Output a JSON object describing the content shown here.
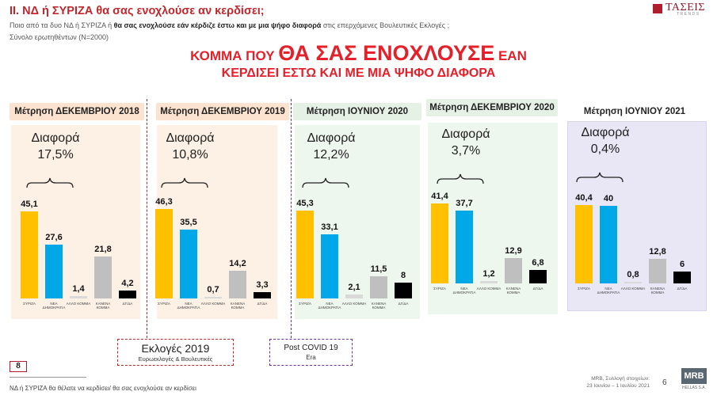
{
  "header": {
    "title": "ΙΙ. ΝΔ  ή ΣΥΡΙΖΑ θα σας ενοχλούσε αν κερδίσει;",
    "subtitle_plain1": "Ποιο από τα δυο ΝΔ ή ΣΥΡΙΖΑ ή ",
    "subtitle_bold": "θα σας ενοχλούσε εάν κέρδιζε έστω και με μια ψήφο διαφορά",
    "subtitle_plain2": " στις επερχόμενες Βουλευτικές Εκλογές ;",
    "sample": "Σύνολο ερωτηθέντων (N=2000)",
    "logo_name": "ΤΑΣΕΙΣ",
    "logo_sub": "TRENDS"
  },
  "headline": {
    "line1_small": "ΚΟΜΜΑ ΠΟΥ ",
    "line1_big": "ΘΑ ΣΑΣ ΕΝΟΧΛΟΥΣΕ",
    "line1_small2": " ΕΑΝ",
    "line2": "ΚΕΡΔΙΣΕΙ ΕΣΤΩ ΚΑΙ ΜΕ ΜΙΑ ΨΗΦΟ ΔΙΑΦΟΡΑ"
  },
  "diff_label": "Διαφορά",
  "chart_data": [
    {
      "type": "bar",
      "title": "Μέτρηση ΔΕΚΕΜΒΡΙΟΥ 2018",
      "difference": "17,5%",
      "categories": [
        "ΣΥΡΙΖΑ",
        "ΝΕΑ ΔΗΜΟΚΡΑΤΙΑ",
        "ΑΛΛΟ ΚΟΜΜΑ",
        "ΚΑΝΕΝΑ ΚΟΜΜΑ",
        "ΔΓ/ΔΑ"
      ],
      "values": [
        45.1,
        27.6,
        1.4,
        21.8,
        4.2
      ],
      "labels": [
        "45,1",
        "27,6",
        "1,4",
        "21,8",
        "4,2"
      ],
      "ylim": [
        0,
        50
      ]
    },
    {
      "type": "bar",
      "title": "Μέτρηση ΔΕΚΕΜΒΡΙΟΥ 2019",
      "difference": "10,8%",
      "categories": [
        "ΣΥΡΙΖΑ",
        "ΝΕΑ ΔΗΜΟΚΡΑΤΙΑ",
        "ΑΛΛΟ ΚΟΜΜΑ",
        "ΚΑΝΕΝΑ ΚΟΜΜΑ",
        "ΔΓ/ΔΑ"
      ],
      "values": [
        46.3,
        35.5,
        0.7,
        14.2,
        3.3
      ],
      "labels": [
        "46,3",
        "35,5",
        "0,7",
        "14,2",
        "3,3"
      ],
      "ylim": [
        0,
        50
      ]
    },
    {
      "type": "bar",
      "title": "Μέτρηση ΙΟΥΝΙΟΥ 2020",
      "difference": "12,2%",
      "categories": [
        "ΣΥΡΙΖΑ",
        "ΝΕΑ ΔΗΜΟΚΡΑΤΙΑ",
        "ΑΛΛΟ ΚΟΜΜΑ",
        "ΚΑΝΕΝΑ ΚΟΜΜΑ",
        "ΔΓ/ΔΑ"
      ],
      "values": [
        45.3,
        33.1,
        2.1,
        11.5,
        8
      ],
      "labels": [
        "45,3",
        "33,1",
        "2,1",
        "11,5",
        "8"
      ],
      "ylim": [
        0,
        50
      ]
    },
    {
      "type": "bar",
      "title": "Μέτρηση ΔΕΚΕΜΒΡΙΟΥ 2020",
      "difference": "3,7%",
      "categories": [
        "ΣΥΡΙΖΑ",
        "ΝΕΑ ΔΗΜΟΚΡΑΤΙΑ",
        "ΑΛΛΟ ΚΟΜΜΑ",
        "ΚΑΝΕΝΑ ΚΟΜΜΑ",
        "ΔΓ/ΔΑ"
      ],
      "values": [
        41.4,
        37.7,
        1.2,
        12.9,
        6.8
      ],
      "labels": [
        "41,4",
        "37,7",
        "1,2",
        "12,9",
        "6,8"
      ],
      "ylim": [
        0,
        50
      ]
    },
    {
      "type": "bar",
      "title": "Μέτρηση ΙΟΥΝΙΟΥ 2021",
      "difference": "0,4%",
      "categories": [
        "ΣΥΡΙΖΑ",
        "ΝΕΑ ΔΗΜΟΚΡΑΤΙΑ",
        "ΑΛΛΟ ΚΟΜΜΑ",
        "ΚΑΝΕΝΑ ΚΟΜΜΑ",
        "ΔΓ/ΔΑ"
      ],
      "values": [
        40.4,
        40,
        0.8,
        12.8,
        6
      ],
      "labels": [
        "40,4",
        "40",
        "0,8",
        "12,8",
        "6"
      ],
      "ylim": [
        0,
        50
      ]
    }
  ],
  "colors": {
    "syriza": "#ffc000",
    "nd": "#00a8e8",
    "other": "#d9d9d9",
    "none": "#bfbfbf",
    "dk": "#000000",
    "panel_bgs": [
      "#fdf1e6",
      "#fdf1e6",
      "#eef7ee",
      "#eef7ee",
      "#e9e6f5"
    ],
    "label_bgs": [
      "#fbe3cf",
      "#fbe3cf",
      "#e6f1e6",
      "#e6f1e6",
      "#ffffff"
    ],
    "elections_line": "#c0272d",
    "covid_line": "#7030a0"
  },
  "events": {
    "elections_title": "Εκλογές 2019",
    "elections_sub": "Ευρωεκλογές & Βουλευτικές",
    "covid_title": "Post  COVID 19",
    "covid_sub": "Era"
  },
  "footer": {
    "page_box": "8",
    "note": "ΝΔ ή ΣΥΡΙΖΑ θα θέλατε να κερδίσει/ θα σας ενοχλούσε αν κερδίσει",
    "source_line1": "MRB, Συλλογή στοιχείων:",
    "source_line2": "23 Ιουνίου – 1 Ιουλίου 2021",
    "page_number": "6",
    "logo_name": "MRB",
    "logo_sub": "HELLAS S.A."
  }
}
